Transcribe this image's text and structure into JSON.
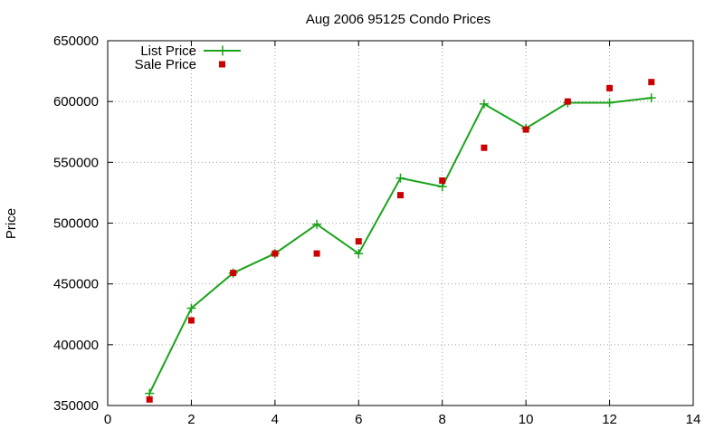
{
  "chart_data": {
    "type": "line",
    "title": "Aug 2006 95125 Condo Prices",
    "xlabel": "",
    "ylabel": "Price",
    "xlim": [
      0,
      14
    ],
    "ylim": [
      350000,
      650000
    ],
    "x_ticks": [
      0,
      2,
      4,
      6,
      8,
      10,
      12,
      14
    ],
    "y_ticks": [
      350000,
      400000,
      450000,
      500000,
      550000,
      600000,
      650000
    ],
    "x_tick_labels": [
      "0",
      "2",
      "4",
      "6",
      "8",
      "10",
      "12",
      "14"
    ],
    "y_tick_labels": [
      "350000",
      "400000",
      "450000",
      "500000",
      "550000",
      "600000",
      "650000"
    ],
    "grid": true,
    "legend_position": "top-left",
    "series": [
      {
        "name": "List Price",
        "style": "line-with-plus-markers",
        "color": "#1aa31a",
        "x": [
          1,
          2,
          3,
          4,
          5,
          6,
          7,
          8,
          9,
          10,
          11,
          12,
          13
        ],
        "y": [
          360000,
          430000,
          459000,
          475000,
          499000,
          475000,
          537000,
          530000,
          598000,
          578000,
          599000,
          599000,
          603000
        ]
      },
      {
        "name": "Sale Price",
        "style": "square-markers",
        "color": "#cc0000",
        "x": [
          1,
          2,
          3,
          4,
          5,
          6,
          7,
          8,
          9,
          10,
          11,
          12,
          13
        ],
        "y": [
          355000,
          420000,
          459000,
          475000,
          475000,
          485000,
          523000,
          535000,
          562000,
          577000,
          600000,
          611000,
          616000
        ]
      }
    ]
  }
}
